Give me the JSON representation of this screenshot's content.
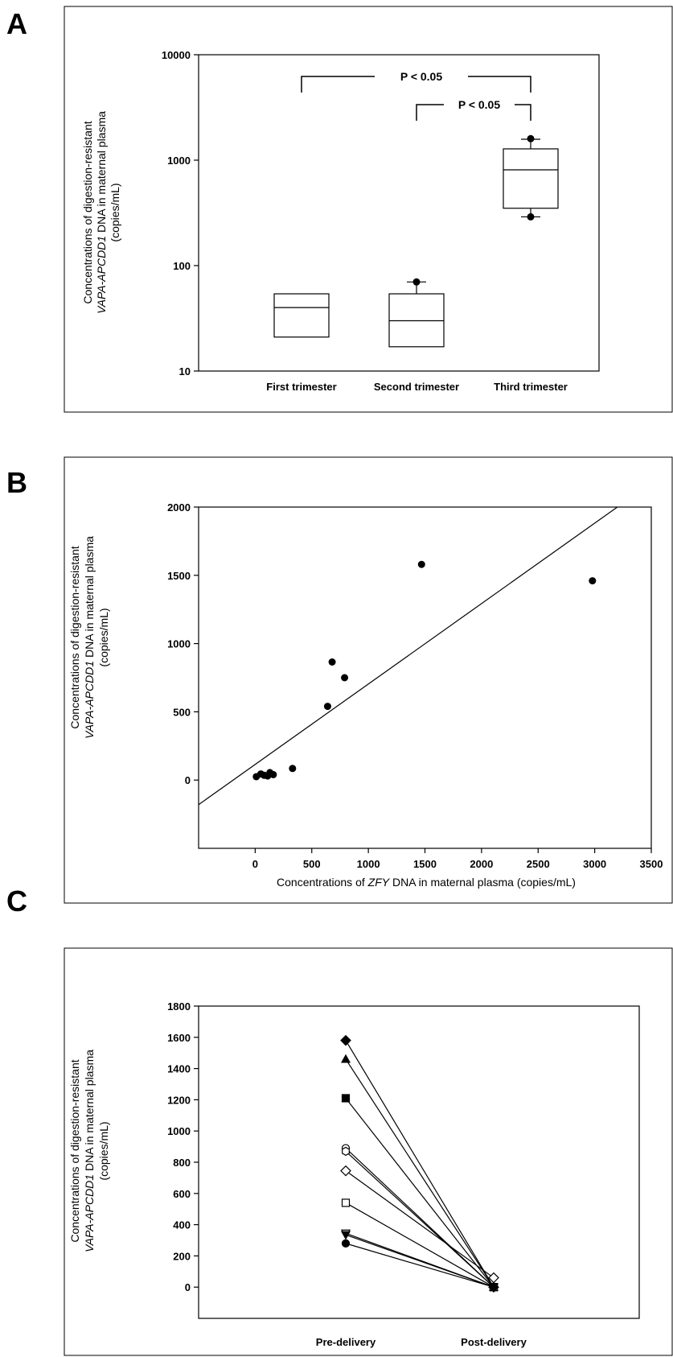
{
  "chart_data": [
    {
      "panel": "A",
      "type": "box",
      "ylabel_line1": "Concentrations of digestion-resistant",
      "ylabel_line2_italic": "VAPA-APCDD1",
      "ylabel_line2_rest": " DNA in maternal plasma",
      "ylabel_line3": "(copies/mL)",
      "yscale": "log",
      "ylim": [
        10,
        10000
      ],
      "yticks": [
        10,
        100,
        1000,
        10000
      ],
      "categories": [
        "First trimester",
        "Second trimester",
        "Third trimester"
      ],
      "boxes": [
        {
          "q1": 21,
          "median": 40,
          "q3": 54,
          "outliers": []
        },
        {
          "q1": 17,
          "median": 30,
          "q3": 54,
          "whisker_high": 70,
          "outliers": [
            70
          ]
        },
        {
          "q1": 350,
          "median": 810,
          "q3": 1280,
          "whisker_low": 290,
          "whisker_high": 1580,
          "outliers": [
            290,
            1600
          ]
        }
      ],
      "annotations": [
        {
          "text": "P < 0.05",
          "from": "First trimester",
          "to": "Third trimester"
        },
        {
          "text": "P < 0.05",
          "from": "Second trimester",
          "to": "Third trimester"
        }
      ]
    },
    {
      "panel": "B",
      "type": "scatter",
      "xlabel_pre": "Concentrations of ",
      "xlabel_italic": "ZFY",
      "xlabel_post": " DNA in maternal plasma (copies/mL)",
      "ylabel_line1": "Concentrations of digestion-resistant",
      "ylabel_line2_italic": "VAPA-APCDD1",
      "ylabel_line2_rest": " DNA in maternal plasma",
      "ylabel_line3": "(copies/mL)",
      "xlim": [
        -500,
        3500
      ],
      "ylim": [
        -500,
        2000
      ],
      "xticks": [
        0,
        500,
        1000,
        1500,
        2000,
        2500,
        3000,
        3500
      ],
      "yticks": [
        0,
        500,
        1000,
        1500,
        2000
      ],
      "points": [
        {
          "x": 10,
          "y": 25
        },
        {
          "x": 50,
          "y": 45
        },
        {
          "x": 80,
          "y": 35
        },
        {
          "x": 110,
          "y": 30
        },
        {
          "x": 130,
          "y": 55
        },
        {
          "x": 160,
          "y": 40
        },
        {
          "x": 330,
          "y": 85
        },
        {
          "x": 640,
          "y": 540
        },
        {
          "x": 680,
          "y": 865
        },
        {
          "x": 790,
          "y": 750
        },
        {
          "x": 1470,
          "y": 1580
        },
        {
          "x": 2980,
          "y": 1460
        }
      ],
      "regression": {
        "x1": -500,
        "y1": -180,
        "x2": 3200,
        "y2": 2000
      }
    },
    {
      "panel": "C",
      "type": "line",
      "ylabel_line1": "Concentrations of digestion-resistant",
      "ylabel_line2_italic": "VAPA-APCDD1",
      "ylabel_line2_rest": " DNA in maternal plasma",
      "ylabel_line3": "(copies/mL)",
      "ylim": [
        -200,
        1800
      ],
      "yticks": [
        0,
        200,
        400,
        600,
        800,
        1000,
        1200,
        1400,
        1600,
        1800
      ],
      "categories": [
        "Pre-delivery",
        "Post-delivery"
      ],
      "series": [
        {
          "marker": "diamond-filled",
          "values": [
            1580,
            0
          ]
        },
        {
          "marker": "triangle-filled",
          "values": [
            1460,
            0
          ]
        },
        {
          "marker": "square-filled",
          "values": [
            1210,
            0
          ]
        },
        {
          "marker": "circle-open",
          "values": [
            890,
            0
          ]
        },
        {
          "marker": "hexagon-open",
          "values": [
            870,
            0
          ]
        },
        {
          "marker": "diamond-open",
          "values": [
            745,
            60
          ]
        },
        {
          "marker": "square-open",
          "values": [
            540,
            0
          ]
        },
        {
          "marker": "triangle-down-open",
          "values": [
            345,
            0
          ]
        },
        {
          "marker": "triangle-down-filled",
          "values": [
            335,
            0
          ]
        },
        {
          "marker": "circle-filled",
          "values": [
            280,
            0
          ]
        }
      ]
    }
  ],
  "panels": {
    "a": "A",
    "b": "B",
    "c": "C"
  }
}
